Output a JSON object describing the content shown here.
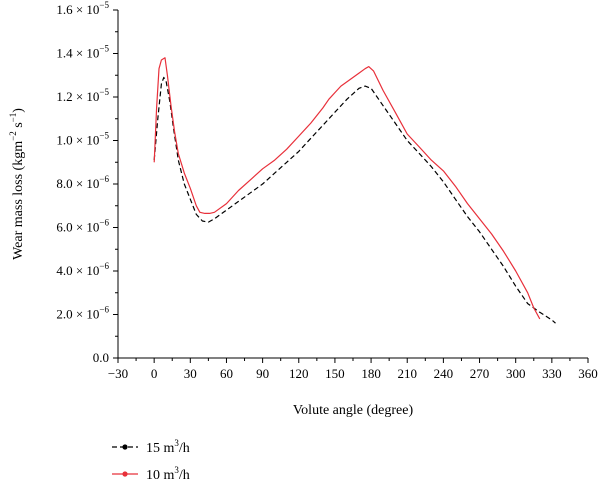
{
  "chart_data": {
    "type": "line",
    "xlabel": "Volute angle (degree)",
    "ylabel": {
      "base": "Wear mass loss (kgm",
      "exp1": "−2",
      "mid": " s",
      "exp2": "−1",
      "end": ")"
    },
    "xlim": [
      -30,
      360
    ],
    "ylim": [
      0,
      1.6e-05
    ],
    "xticks": [
      -30,
      0,
      30,
      60,
      90,
      120,
      150,
      180,
      210,
      240,
      270,
      300,
      330,
      360
    ],
    "yticks": [
      {
        "value": 0,
        "mantissa": "0.0",
        "exp": ""
      },
      {
        "value": 2e-06,
        "mantissa": "2.0 × 10",
        "exp": "−6"
      },
      {
        "value": 4e-06,
        "mantissa": "4.0 × 10",
        "exp": "−6"
      },
      {
        "value": 6e-06,
        "mantissa": "6.0 × 10",
        "exp": "−6"
      },
      {
        "value": 8e-06,
        "mantissa": "8.0 × 10",
        "exp": "−6"
      },
      {
        "value": 1e-05,
        "mantissa": "1.0 × 10",
        "exp": "−5"
      },
      {
        "value": 1.2e-05,
        "mantissa": "1.2 × 10",
        "exp": "−5"
      },
      {
        "value": 1.4e-05,
        "mantissa": "1.4 × 10",
        "exp": "−5"
      },
      {
        "value": 1.6e-05,
        "mantissa": "1.6 × 10",
        "exp": "−5"
      }
    ],
    "grid": false,
    "legend_position": "bottom-left, below plot",
    "series": [
      {
        "name": "15 m3/h",
        "label_base": "15 m",
        "label_sup": "3",
        "label_end": "/h",
        "color": "#000000",
        "dash": "dashed",
        "x": [
          0,
          3,
          6,
          8,
          10,
          13,
          16,
          20,
          25,
          30,
          35,
          40,
          45,
          50,
          60,
          70,
          80,
          90,
          100,
          110,
          120,
          130,
          140,
          150,
          160,
          170,
          175,
          180,
          190,
          200,
          210,
          220,
          230,
          240,
          250,
          260,
          270,
          280,
          290,
          300,
          310,
          320,
          330,
          333
        ],
        "y": [
          9.1e-06,
          1.1e-05,
          1.26e-05,
          1.29e-05,
          1.27e-05,
          1.18e-05,
          1.06e-05,
          9.1e-06,
          8e-06,
          7.3e-06,
          6.6e-06,
          6.3e-06,
          6.25e-06,
          6.4e-06,
          6.8e-06,
          7.2e-06,
          7.6e-06,
          8e-06,
          8.5e-06,
          9e-06,
          9.5e-06,
          1.01e-05,
          1.07e-05,
          1.13e-05,
          1.19e-05,
          1.24e-05,
          1.25e-05,
          1.24e-05,
          1.16e-05,
          1.08e-05,
          1e-05,
          9.4e-06,
          8.8e-06,
          8.1e-06,
          7.3e-06,
          6.5e-06,
          5.8e-06,
          5e-06,
          4.2e-06,
          3.3e-06,
          2.5e-06,
          2.1e-06,
          1.75e-06,
          1.6e-06
        ]
      },
      {
        "name": "10 m3/h",
        "label_base": "10 m",
        "label_sup": "3",
        "label_end": "/h",
        "color": "#e8303a",
        "dash": "solid",
        "x": [
          0,
          2,
          4,
          6,
          9,
          11,
          14,
          17,
          20,
          25,
          30,
          35,
          38,
          42,
          46,
          50,
          60,
          70,
          80,
          90,
          100,
          110,
          120,
          130,
          140,
          145,
          150,
          155,
          160,
          170,
          175,
          178,
          182,
          190,
          200,
          210,
          220,
          230,
          240,
          250,
          260,
          270,
          280,
          290,
          300,
          310,
          315,
          320
        ],
        "y": [
          9e-06,
          1.15e-05,
          1.33e-05,
          1.37e-05,
          1.38e-05,
          1.3e-05,
          1.16e-05,
          1.04e-05,
          9.4e-06,
          8.5e-06,
          7.8e-06,
          7e-06,
          6.7e-06,
          6.65e-06,
          6.65e-06,
          6.7e-06,
          7.1e-06,
          7.7e-06,
          8.2e-06,
          8.7e-06,
          9.1e-06,
          9.6e-06,
          1.02e-05,
          1.08e-05,
          1.15e-05,
          1.19e-05,
          1.22e-05,
          1.25e-05,
          1.27e-05,
          1.31e-05,
          1.33e-05,
          1.34e-05,
          1.32e-05,
          1.23e-05,
          1.13e-05,
          1.03e-05,
          9.7e-06,
          9.1e-06,
          8.6e-06,
          7.9e-06,
          7.1e-06,
          6.4e-06,
          5.7e-06,
          4.9e-06,
          4e-06,
          3e-06,
          2.3e-06,
          1.8e-06
        ]
      }
    ]
  }
}
